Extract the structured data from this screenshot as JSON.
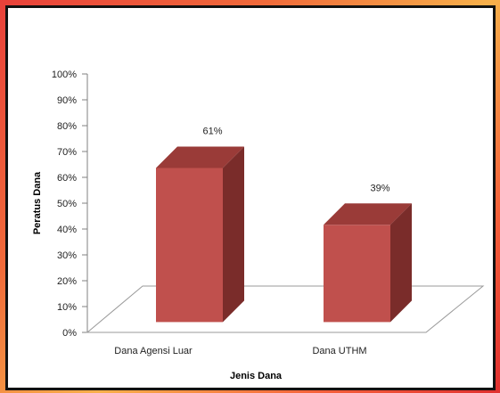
{
  "chart_data": {
    "type": "bar",
    "categories": [
      "Dana Agensi Luar",
      "Dana UTHM"
    ],
    "values": [
      61,
      39
    ],
    "data_labels": [
      "61%",
      "39%"
    ],
    "ylim": [
      0,
      100
    ],
    "yticks": [
      "0%",
      "10%",
      "20%",
      "30%",
      "40%",
      "50%",
      "60%",
      "70%",
      "80%",
      "90%",
      "100%"
    ],
    "ylabel": "Peratus Dana",
    "xlabel": "Jenis Dana",
    "style": "3d-column",
    "colors": {
      "front": "#c0504d",
      "top": "#9a3b38",
      "side": "#7a2c2a"
    }
  }
}
